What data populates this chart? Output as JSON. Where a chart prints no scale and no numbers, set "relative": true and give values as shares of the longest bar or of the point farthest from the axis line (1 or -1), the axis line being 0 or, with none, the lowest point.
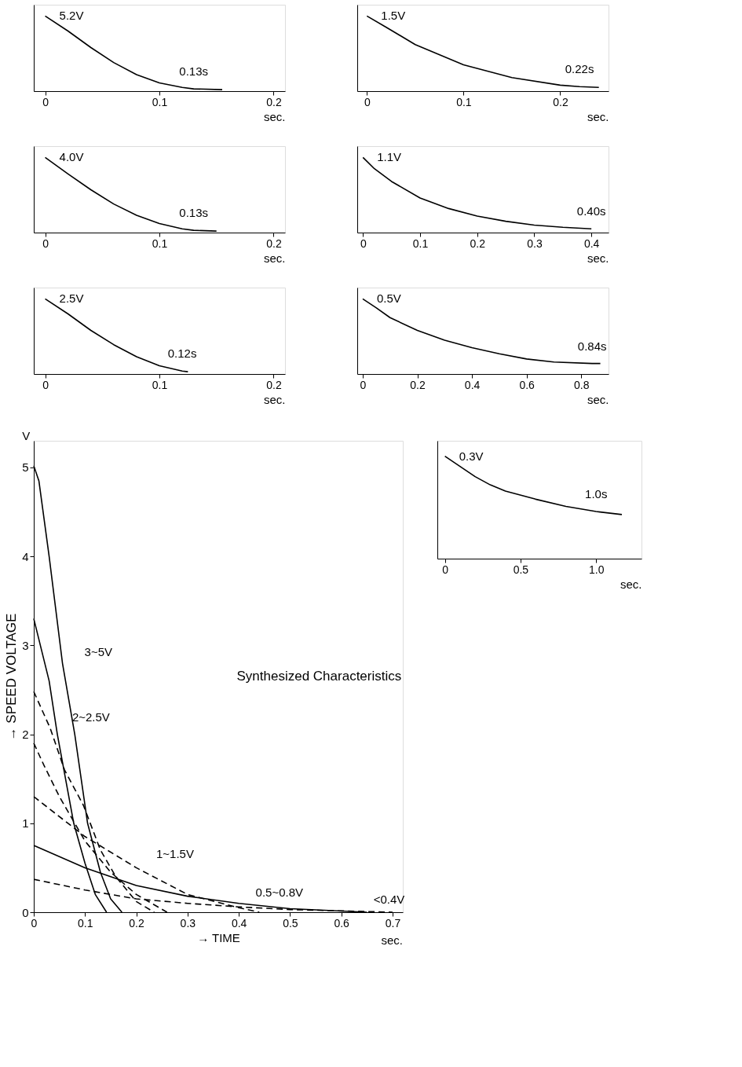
{
  "chart_data": [
    {
      "type": "line",
      "relative": true,
      "xlabel": "sec.",
      "xlim": [
        -0.01,
        0.21
      ],
      "xticks": [
        0,
        0.1,
        0.2
      ],
      "grid": false,
      "marker": "none",
      "x": [
        0,
        0.02,
        0.04,
        0.06,
        0.08,
        0.1,
        0.12,
        0.13,
        0.155
      ],
      "series": [
        {
          "color": "#000000",
          "values": [
            1,
            0.8,
            0.58,
            0.38,
            0.22,
            0.11,
            0.05,
            0.03,
            0.02
          ]
        }
      ],
      "annotations": [
        {
          "text": "5.2V",
          "x": 0,
          "y": 1
        },
        {
          "text": "0.13s",
          "x": 0.13,
          "y": 0.03
        }
      ]
    },
    {
      "type": "line",
      "relative": true,
      "xlabel": "sec.",
      "xlim": [
        -0.01,
        0.25
      ],
      "xticks": [
        0,
        0.1,
        0.2
      ],
      "grid": false,
      "marker": "none",
      "x": [
        0,
        0.02,
        0.05,
        0.1,
        0.15,
        0.2,
        0.22,
        0.24
      ],
      "series": [
        {
          "color": "#000000",
          "values": [
            1,
            0.85,
            0.62,
            0.35,
            0.18,
            0.08,
            0.06,
            0.05
          ]
        }
      ],
      "annotations": [
        {
          "text": "1.5V",
          "x": 0,
          "y": 1
        },
        {
          "text": "0.22s",
          "x": 0.22,
          "y": 0.06
        }
      ]
    },
    {
      "type": "line",
      "relative": true,
      "xlabel": "sec.",
      "xlim": [
        -0.01,
        0.21
      ],
      "xticks": [
        0,
        0.1,
        0.2
      ],
      "grid": false,
      "marker": "none",
      "x": [
        0,
        0.02,
        0.04,
        0.06,
        0.08,
        0.1,
        0.12,
        0.13,
        0.15
      ],
      "series": [
        {
          "color": "#000000",
          "values": [
            1,
            0.78,
            0.57,
            0.38,
            0.23,
            0.12,
            0.05,
            0.03,
            0.02
          ]
        }
      ],
      "annotations": [
        {
          "text": "4.0V",
          "x": 0,
          "y": 1
        },
        {
          "text": "0.13s",
          "x": 0.13,
          "y": 0.03
        }
      ]
    },
    {
      "type": "line",
      "relative": true,
      "xlabel": "sec.",
      "xlim": [
        -0.01,
        0.43
      ],
      "xticks": [
        0,
        0.1,
        0.2,
        0.3,
        0.4
      ],
      "grid": false,
      "marker": "none",
      "x": [
        0,
        0.02,
        0.05,
        0.1,
        0.15,
        0.2,
        0.25,
        0.3,
        0.35,
        0.4
      ],
      "series": [
        {
          "color": "#000000",
          "values": [
            1,
            0.85,
            0.68,
            0.46,
            0.32,
            0.22,
            0.15,
            0.1,
            0.07,
            0.05
          ]
        }
      ],
      "annotations": [
        {
          "text": "1.1V",
          "x": 0,
          "y": 1
        },
        {
          "text": "0.40s",
          "x": 0.4,
          "y": 0.05
        }
      ]
    },
    {
      "type": "line",
      "relative": true,
      "xlabel": "sec.",
      "xlim": [
        -0.01,
        0.21
      ],
      "xticks": [
        0,
        0.1,
        0.2
      ],
      "grid": false,
      "marker": "none",
      "x": [
        0,
        0.02,
        0.04,
        0.06,
        0.08,
        0.1,
        0.12,
        0.125
      ],
      "series": [
        {
          "color": "#000000",
          "values": [
            1,
            0.8,
            0.58,
            0.39,
            0.23,
            0.11,
            0.04,
            0.03
          ]
        }
      ],
      "annotations": [
        {
          "text": "2.5V",
          "x": 0,
          "y": 1
        },
        {
          "text": "0.12s",
          "x": 0.12,
          "y": 0.04
        }
      ]
    },
    {
      "type": "line",
      "relative": true,
      "xlabel": "sec.",
      "xlim": [
        -0.02,
        0.9
      ],
      "xticks": [
        0,
        0.2,
        0.4,
        0.6,
        0.8
      ],
      "grid": false,
      "marker": "none",
      "x": [
        0,
        0.05,
        0.1,
        0.2,
        0.3,
        0.4,
        0.5,
        0.6,
        0.7,
        0.84,
        0.87
      ],
      "series": [
        {
          "color": "#000000",
          "values": [
            1,
            0.88,
            0.75,
            0.58,
            0.45,
            0.35,
            0.27,
            0.2,
            0.16,
            0.14,
            0.14
          ]
        }
      ],
      "annotations": [
        {
          "text": "0.5V",
          "x": 0,
          "y": 1
        },
        {
          "text": "0.84s",
          "x": 0.84,
          "y": 0.14
        }
      ]
    },
    {
      "type": "line",
      "xlabel": "→ TIME",
      "ylabel": "→ SPEED VOLTAGE",
      "xlim": [
        0,
        0.72
      ],
      "xticks": [
        0,
        0.1,
        0.2,
        0.3,
        0.4,
        0.5,
        0.6,
        0.7
      ],
      "ylim": [
        0,
        5.3
      ],
      "yticks": [
        0,
        1,
        2,
        3,
        4,
        5
      ],
      "grid": false,
      "marker": "none",
      "series": [
        {
          "color": "#000000",
          "line_style": "solid",
          "x": [
            0,
            0.01,
            0.03,
            0.056,
            0.08,
            0.105,
            0.13,
            0.15,
            0.172
          ],
          "values": [
            5.02,
            4.85,
            4.0,
            2.8,
            2.0,
            1.0,
            0.45,
            0.15,
            0
          ]
        },
        {
          "color": "#000000",
          "line_style": "solid",
          "x": [
            0,
            0.03,
            0.046,
            0.078,
            0.1,
            0.12,
            0.142
          ],
          "values": [
            3.3,
            2.6,
            2.0,
            1.0,
            0.55,
            0.2,
            0
          ]
        },
        {
          "color": "#000000",
          "line_style": "dashed",
          "x": [
            0,
            0.032,
            0.06,
            0.097,
            0.13,
            0.16,
            0.2,
            0.235
          ],
          "values": [
            2.48,
            2.07,
            1.6,
            1.2,
            0.7,
            0.4,
            0.12,
            0
          ]
        },
        {
          "color": "#000000",
          "line_style": "dashed",
          "x": [
            0,
            0.02,
            0.05,
            0.1,
            0.15,
            0.2,
            0.26
          ],
          "values": [
            1.9,
            1.65,
            1.3,
            0.8,
            0.45,
            0.2,
            0
          ]
        },
        {
          "color": "#000000",
          "line_style": "dashed",
          "x": [
            0,
            0.1,
            0.2,
            0.3,
            0.4,
            0.44
          ],
          "values": [
            1.3,
            0.85,
            0.5,
            0.2,
            0.05,
            0
          ]
        },
        {
          "color": "#000000",
          "line_style": "solid",
          "x": [
            0,
            0.1,
            0.2,
            0.3,
            0.4,
            0.5,
            0.65
          ],
          "values": [
            0.75,
            0.5,
            0.3,
            0.18,
            0.1,
            0.04,
            0
          ]
        },
        {
          "color": "#000000",
          "line_style": "dashed",
          "x": [
            0,
            0.1,
            0.2,
            0.3,
            0.4,
            0.5,
            0.7
          ],
          "values": [
            0.37,
            0.25,
            0.15,
            0.1,
            0.06,
            0.03,
            0
          ]
        }
      ],
      "annotations": [
        "Synthesized Characteristics",
        "V",
        "sec.",
        {
          "text": "3~5V",
          "x": 0.056,
          "y": 2.8
        },
        {
          "text": "2~2.5V",
          "x": 0.032,
          "y": 2.07
        },
        {
          "text": "1~1.5V",
          "x": 0.196,
          "y": 0.53
        },
        {
          "text": "0.5~0.8V",
          "x": 0.39,
          "y": 0.1
        },
        {
          "text": "<0.4V",
          "x": 0.62,
          "y": 0.02
        }
      ]
    },
    {
      "type": "line",
      "relative": true,
      "xlabel": "sec.",
      "xlim": [
        -0.05,
        1.3
      ],
      "xticks": [
        0,
        0.5,
        {
          "value": 1.0,
          "label": "1.0"
        }
      ],
      "grid": false,
      "marker": "none",
      "x": [
        0,
        0.1,
        0.2,
        0.3,
        0.4,
        0.6,
        0.8,
        1.0,
        1.17
      ],
      "series": [
        {
          "color": "#000000",
          "values": [
            1,
            0.9,
            0.8,
            0.72,
            0.66,
            0.58,
            0.51,
            0.46,
            0.43
          ]
        }
      ],
      "annotations": [
        {
          "text": "0.3V",
          "x": 0,
          "y": 1
        },
        {
          "text": "1.0s",
          "x": 1.0,
          "y": 0.46
        }
      ]
    }
  ]
}
